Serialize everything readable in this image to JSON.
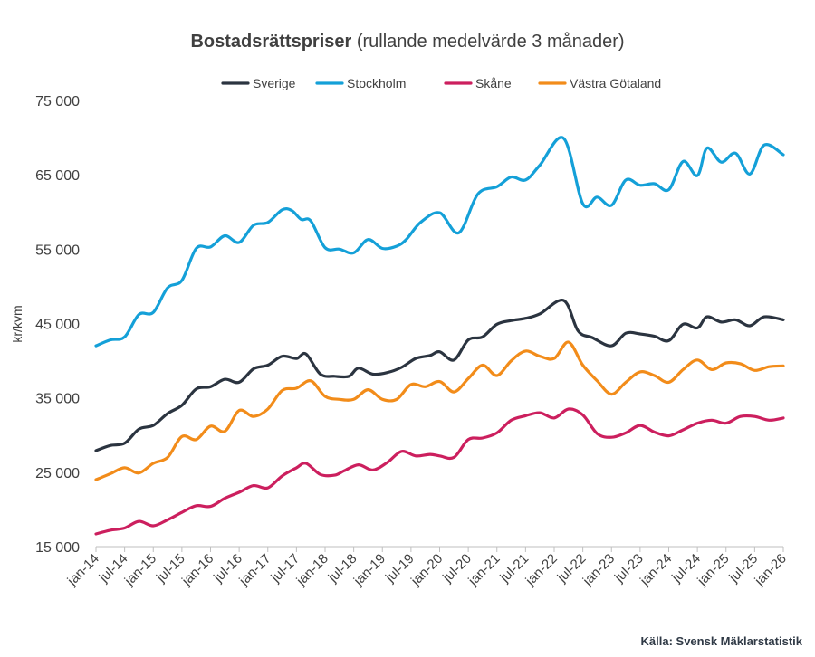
{
  "chart_data": {
    "type": "line",
    "title": "Bostadsrättspriser",
    "subtitle": "(rullande medelvärde 3 månader)",
    "ylabel": "kr/kvm",
    "xlabel": "",
    "source": "Källa: Svensk Mäklarstatistik",
    "ylim": [
      15000,
      75000
    ],
    "yticks": [
      15000,
      25000,
      35000,
      45000,
      55000,
      65000,
      75000
    ],
    "ytick_labels": [
      "15 000",
      "25 000",
      "35 000",
      "45 000",
      "55 000",
      "65 000",
      "75 000"
    ],
    "xtick_labels": [
      "jan-14",
      "jul-14",
      "jan-15",
      "jul-15",
      "jan-16",
      "jul-16",
      "jan-17",
      "jul-17",
      "jan-18",
      "jul-18",
      "jan-19",
      "jul-19",
      "jan-20",
      "jul-20",
      "jan-21",
      "jul-21",
      "jan-22",
      "jul-22",
      "jan-23",
      "jul-23",
      "jan-24",
      "jul-24",
      "jan-25",
      "jul-25",
      "jan-26"
    ],
    "x_start": "2014-01",
    "x_end": "2026-01",
    "grid": false,
    "legend_position": "top",
    "series": [
      {
        "name": "Sverige",
        "color": "#2b3440",
        "points": [
          [
            "2014-01",
            27900
          ],
          [
            "2014-04",
            28600
          ],
          [
            "2014-07",
            28900
          ],
          [
            "2014-10",
            30800
          ],
          [
            "2015-01",
            31300
          ],
          [
            "2015-04",
            32900
          ],
          [
            "2015-07",
            34000
          ],
          [
            "2015-10",
            36200
          ],
          [
            "2016-01",
            36500
          ],
          [
            "2016-04",
            37500
          ],
          [
            "2016-07",
            37100
          ],
          [
            "2016-10",
            38900
          ],
          [
            "2017-01",
            39400
          ],
          [
            "2017-04",
            40600
          ],
          [
            "2017-07",
            40300
          ],
          [
            "2017-09",
            40900
          ],
          [
            "2017-12",
            38200
          ],
          [
            "2018-03",
            37900
          ],
          [
            "2018-06",
            37900
          ],
          [
            "2018-08",
            39000
          ],
          [
            "2018-11",
            38200
          ],
          [
            "2019-02",
            38400
          ],
          [
            "2019-05",
            39100
          ],
          [
            "2019-08",
            40300
          ],
          [
            "2019-11",
            40700
          ],
          [
            "2020-01",
            41200
          ],
          [
            "2020-04",
            40100
          ],
          [
            "2020-07",
            42800
          ],
          [
            "2020-10",
            43200
          ],
          [
            "2021-01",
            44900
          ],
          [
            "2021-04",
            45400
          ],
          [
            "2021-07",
            45700
          ],
          [
            "2021-10",
            46300
          ],
          [
            "2022-03",
            48100
          ],
          [
            "2022-06",
            44000
          ],
          [
            "2022-09",
            43100
          ],
          [
            "2023-01",
            42000
          ],
          [
            "2023-04",
            43700
          ],
          [
            "2023-07",
            43600
          ],
          [
            "2023-10",
            43300
          ],
          [
            "2024-01",
            42700
          ],
          [
            "2024-04",
            44900
          ],
          [
            "2024-07",
            44400
          ],
          [
            "2024-09",
            45900
          ],
          [
            "2024-12",
            45200
          ],
          [
            "2025-03",
            45500
          ],
          [
            "2025-06",
            44700
          ],
          [
            "2025-09",
            45900
          ],
          [
            "2026-01",
            45500
          ]
        ]
      },
      {
        "name": "Stockholm",
        "color": "#14a0d8",
        "points": [
          [
            "2014-01",
            42000
          ],
          [
            "2014-04",
            42800
          ],
          [
            "2014-07",
            43200
          ],
          [
            "2014-10",
            46200
          ],
          [
            "2015-01",
            46500
          ],
          [
            "2015-04",
            49800
          ],
          [
            "2015-07",
            50800
          ],
          [
            "2015-10",
            55100
          ],
          [
            "2016-01",
            55300
          ],
          [
            "2016-04",
            56800
          ],
          [
            "2016-07",
            55900
          ],
          [
            "2016-10",
            58200
          ],
          [
            "2017-01",
            58600
          ],
          [
            "2017-04",
            60300
          ],
          [
            "2017-06",
            60200
          ],
          [
            "2017-08",
            59000
          ],
          [
            "2017-10",
            58800
          ],
          [
            "2018-01",
            55200
          ],
          [
            "2018-04",
            55000
          ],
          [
            "2018-07",
            54500
          ],
          [
            "2018-10",
            56300
          ],
          [
            "2019-01",
            55100
          ],
          [
            "2019-04",
            55400
          ],
          [
            "2019-06",
            56300
          ],
          [
            "2019-09",
            58600
          ],
          [
            "2020-01",
            59900
          ],
          [
            "2020-05",
            57200
          ],
          [
            "2020-09",
            62400
          ],
          [
            "2021-01",
            63400
          ],
          [
            "2021-04",
            64700
          ],
          [
            "2021-07",
            64300
          ],
          [
            "2021-10",
            66300
          ],
          [
            "2022-03",
            69900
          ],
          [
            "2022-07",
            61100
          ],
          [
            "2022-10",
            62000
          ],
          [
            "2023-01",
            60900
          ],
          [
            "2023-04",
            64300
          ],
          [
            "2023-07",
            63600
          ],
          [
            "2023-10",
            63800
          ],
          [
            "2024-01",
            63000
          ],
          [
            "2024-04",
            66800
          ],
          [
            "2024-07",
            64900
          ],
          [
            "2024-09",
            68600
          ],
          [
            "2024-12",
            66700
          ],
          [
            "2025-03",
            67900
          ],
          [
            "2025-06",
            65100
          ],
          [
            "2025-09",
            69000
          ],
          [
            "2026-01",
            67700
          ]
        ]
      },
      {
        "name": "Skåne",
        "color": "#cc1f5e",
        "points": [
          [
            "2014-01",
            16700
          ],
          [
            "2014-04",
            17200
          ],
          [
            "2014-07",
            17500
          ],
          [
            "2014-10",
            18400
          ],
          [
            "2015-01",
            17800
          ],
          [
            "2015-04",
            18600
          ],
          [
            "2015-07",
            19600
          ],
          [
            "2015-10",
            20500
          ],
          [
            "2016-01",
            20400
          ],
          [
            "2016-04",
            21500
          ],
          [
            "2016-07",
            22300
          ],
          [
            "2016-10",
            23200
          ],
          [
            "2017-01",
            22900
          ],
          [
            "2017-04",
            24500
          ],
          [
            "2017-07",
            25600
          ],
          [
            "2017-09",
            26200
          ],
          [
            "2017-12",
            24700
          ],
          [
            "2018-03",
            24600
          ],
          [
            "2018-05",
            25200
          ],
          [
            "2018-08",
            26000
          ],
          [
            "2018-11",
            25300
          ],
          [
            "2019-02",
            26300
          ],
          [
            "2019-05",
            27800
          ],
          [
            "2019-08",
            27200
          ],
          [
            "2019-11",
            27400
          ],
          [
            "2020-01",
            27200
          ],
          [
            "2020-04",
            27000
          ],
          [
            "2020-07",
            29400
          ],
          [
            "2020-10",
            29600
          ],
          [
            "2021-01",
            30300
          ],
          [
            "2021-04",
            32000
          ],
          [
            "2021-07",
            32600
          ],
          [
            "2021-10",
            33000
          ],
          [
            "2022-01",
            32300
          ],
          [
            "2022-04",
            33500
          ],
          [
            "2022-07",
            32700
          ],
          [
            "2022-10",
            30200
          ],
          [
            "2023-01",
            29700
          ],
          [
            "2023-04",
            30300
          ],
          [
            "2023-07",
            31300
          ],
          [
            "2023-10",
            30400
          ],
          [
            "2024-01",
            29900
          ],
          [
            "2024-04",
            30700
          ],
          [
            "2024-07",
            31600
          ],
          [
            "2024-10",
            32000
          ],
          [
            "2025-01",
            31600
          ],
          [
            "2025-04",
            32500
          ],
          [
            "2025-07",
            32500
          ],
          [
            "2025-10",
            32000
          ],
          [
            "2026-01",
            32300
          ]
        ]
      },
      {
        "name": "Västra Götaland",
        "color": "#f28c1a",
        "points": [
          [
            "2014-01",
            24000
          ],
          [
            "2014-04",
            24800
          ],
          [
            "2014-07",
            25600
          ],
          [
            "2014-10",
            24900
          ],
          [
            "2015-01",
            26200
          ],
          [
            "2015-04",
            27000
          ],
          [
            "2015-07",
            29800
          ],
          [
            "2015-10",
            29400
          ],
          [
            "2016-01",
            31200
          ],
          [
            "2016-04",
            30500
          ],
          [
            "2016-07",
            33300
          ],
          [
            "2016-10",
            32500
          ],
          [
            "2017-01",
            33500
          ],
          [
            "2017-04",
            36000
          ],
          [
            "2017-07",
            36300
          ],
          [
            "2017-10",
            37300
          ],
          [
            "2018-01",
            35200
          ],
          [
            "2018-04",
            34800
          ],
          [
            "2018-07",
            34800
          ],
          [
            "2018-10",
            36100
          ],
          [
            "2019-01",
            34800
          ],
          [
            "2019-04",
            34800
          ],
          [
            "2019-07",
            36800
          ],
          [
            "2019-10",
            36500
          ],
          [
            "2020-01",
            37200
          ],
          [
            "2020-04",
            35800
          ],
          [
            "2020-07",
            37600
          ],
          [
            "2020-10",
            39400
          ],
          [
            "2021-01",
            38000
          ],
          [
            "2021-04",
            40000
          ],
          [
            "2021-07",
            41300
          ],
          [
            "2021-10",
            40600
          ],
          [
            "2022-01",
            40300
          ],
          [
            "2022-04",
            42500
          ],
          [
            "2022-07",
            39400
          ],
          [
            "2022-10",
            37300
          ],
          [
            "2023-01",
            35500
          ],
          [
            "2023-04",
            37100
          ],
          [
            "2023-07",
            38500
          ],
          [
            "2023-10",
            38000
          ],
          [
            "2024-01",
            37100
          ],
          [
            "2024-04",
            38800
          ],
          [
            "2024-07",
            40100
          ],
          [
            "2024-10",
            38800
          ],
          [
            "2025-01",
            39700
          ],
          [
            "2025-04",
            39600
          ],
          [
            "2025-07",
            38700
          ],
          [
            "2025-10",
            39200
          ],
          [
            "2026-01",
            39300
          ]
        ]
      }
    ]
  }
}
